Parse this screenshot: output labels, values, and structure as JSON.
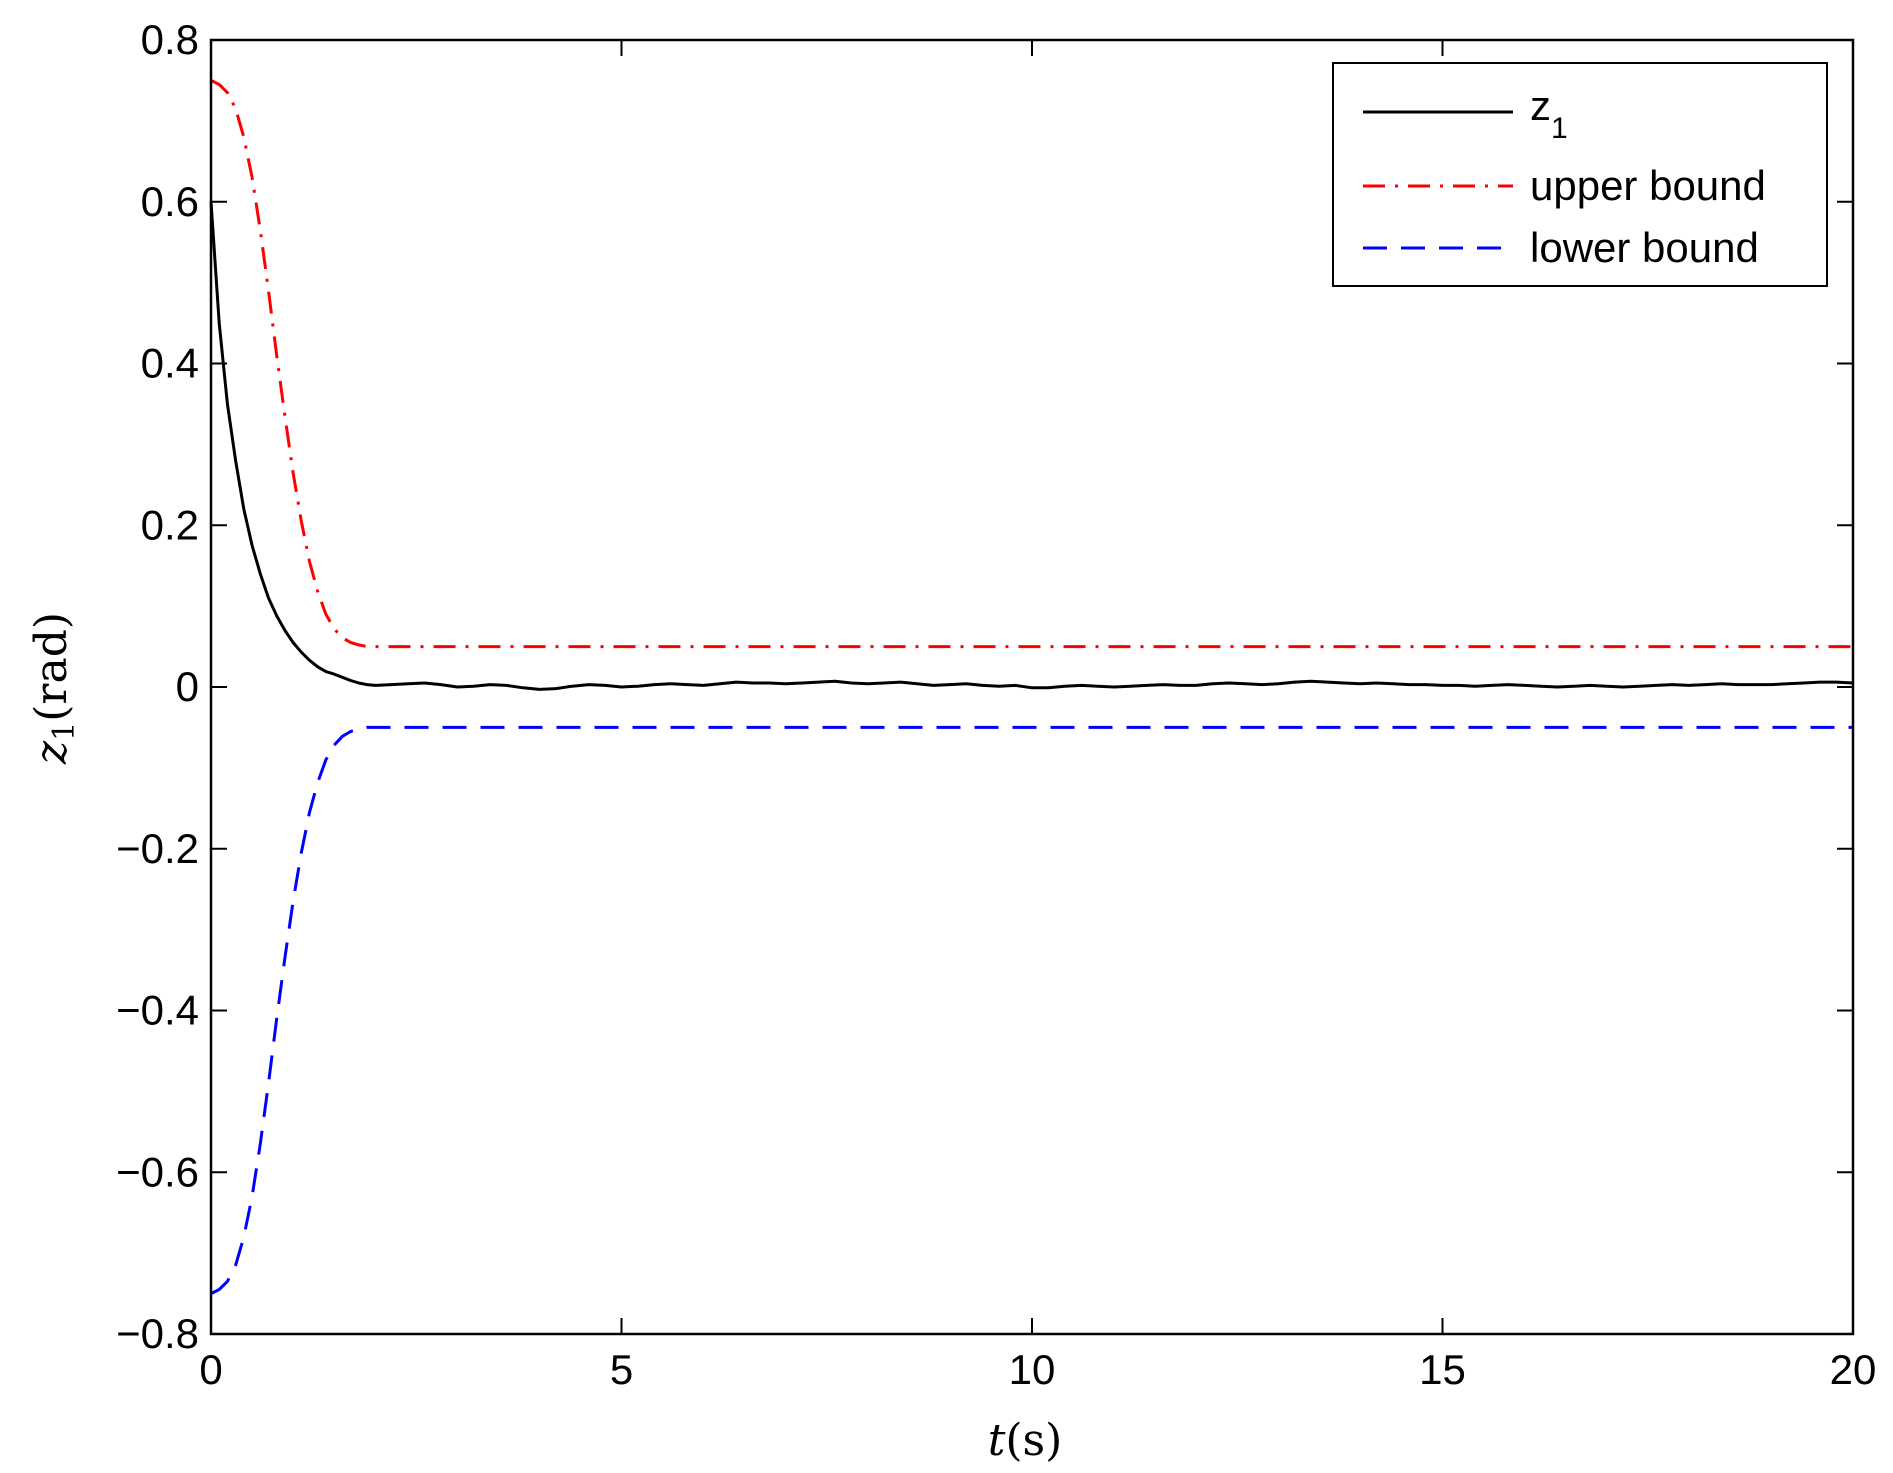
{
  "chart_data": {
    "type": "line",
    "xlabel": {
      "italic": "t",
      "unit": "(s)"
    },
    "ylabel": {
      "italic": "z",
      "sub": "1",
      "unit": "(rad)"
    },
    "xlim": [
      0,
      20
    ],
    "ylim": [
      -0.8,
      0.8
    ],
    "xticks": [
      0,
      5,
      10,
      15,
      20
    ],
    "xtick_labels": [
      "0",
      "5",
      "10",
      "15",
      "20"
    ],
    "yticks": [
      0.8,
      0.6,
      0.4,
      0.2,
      0,
      -0.2,
      -0.4,
      -0.6,
      -0.8
    ],
    "ytick_labels": [
      "0.8",
      "0.6",
      "0.4",
      "0.2",
      "0",
      "−0.2",
      "−0.4",
      "−0.6",
      "−0.8"
    ],
    "grid": false,
    "legend_position": "top-right",
    "series": [
      {
        "name": "z",
        "name_sub": "1",
        "color": "#000000",
        "style": "solid",
        "x": [
          0,
          0.1,
          0.2,
          0.3,
          0.4,
          0.5,
          0.6,
          0.7,
          0.8,
          0.9,
          1.0,
          1.1,
          1.2,
          1.3,
          1.4,
          1.5,
          1.6,
          1.7,
          1.8,
          1.9,
          2.0,
          2.2,
          2.4,
          2.6,
          2.8,
          3.0,
          3.2,
          3.4,
          3.6,
          3.8,
          4.0,
          4.2,
          4.4,
          4.6,
          4.8,
          5.0,
          5.2,
          5.4,
          5.6,
          5.8,
          6.0,
          6.2,
          6.4,
          6.6,
          6.8,
          7.0,
          7.2,
          7.4,
          7.6,
          7.8,
          8.0,
          8.2,
          8.4,
          8.6,
          8.8,
          9.0,
          9.2,
          9.4,
          9.6,
          9.8,
          10.0,
          10.2,
          10.4,
          10.6,
          10.8,
          11.0,
          11.2,
          11.4,
          11.6,
          11.8,
          12.0,
          12.2,
          12.4,
          12.6,
          12.8,
          13.0,
          13.2,
          13.4,
          13.6,
          13.8,
          14.0,
          14.2,
          14.4,
          14.6,
          14.8,
          15.0,
          15.2,
          15.4,
          15.6,
          15.8,
          16.0,
          16.2,
          16.4,
          16.6,
          16.8,
          17.0,
          17.2,
          17.4,
          17.6,
          17.8,
          18.0,
          18.2,
          18.4,
          18.6,
          18.8,
          19.0,
          19.2,
          19.4,
          19.6,
          19.8,
          20.0
        ],
        "values": [
          0.6,
          0.45,
          0.35,
          0.28,
          0.22,
          0.175,
          0.14,
          0.11,
          0.088,
          0.07,
          0.055,
          0.043,
          0.033,
          0.025,
          0.019,
          0.016,
          0.012,
          0.008,
          0.005,
          0.003,
          0.002,
          0.003,
          0.004,
          0.005,
          0.003,
          0.0,
          0.001,
          0.003,
          0.002,
          -0.001,
          -0.003,
          -0.002,
          0.001,
          0.003,
          0.002,
          0.0,
          0.001,
          0.003,
          0.004,
          0.003,
          0.002,
          0.004,
          0.006,
          0.005,
          0.005,
          0.004,
          0.005,
          0.006,
          0.007,
          0.005,
          0.004,
          0.005,
          0.006,
          0.004,
          0.002,
          0.003,
          0.004,
          0.002,
          0.001,
          0.002,
          -0.001,
          -0.001,
          0.001,
          0.002,
          0.001,
          0.0,
          0.001,
          0.002,
          0.003,
          0.002,
          0.002,
          0.004,
          0.005,
          0.004,
          0.003,
          0.004,
          0.006,
          0.007,
          0.006,
          0.005,
          0.004,
          0.005,
          0.004,
          0.003,
          0.003,
          0.002,
          0.002,
          0.001,
          0.002,
          0.003,
          0.002,
          0.001,
          0.0,
          0.001,
          0.002,
          0.001,
          0.0,
          0.001,
          0.002,
          0.003,
          0.002,
          0.003,
          0.004,
          0.003,
          0.003,
          0.003,
          0.004,
          0.005,
          0.006,
          0.006,
          0.005
        ]
      },
      {
        "name": "upper bound",
        "color": "#ff0000",
        "style": "dashdot",
        "x": [
          0,
          0.1,
          0.2,
          0.3,
          0.4,
          0.5,
          0.6,
          0.7,
          0.8,
          0.9,
          1.0,
          1.1,
          1.2,
          1.3,
          1.4,
          1.5,
          1.6,
          1.7,
          1.8,
          1.9,
          2.0,
          2.2,
          20.0
        ],
        "values": [
          0.75,
          0.745,
          0.735,
          0.715,
          0.68,
          0.63,
          0.565,
          0.49,
          0.41,
          0.335,
          0.265,
          0.205,
          0.155,
          0.118,
          0.09,
          0.072,
          0.061,
          0.055,
          0.052,
          0.05,
          0.05,
          0.05,
          0.05
        ]
      },
      {
        "name": "lower bound",
        "color": "#0000ff",
        "style": "dashed",
        "x": [
          0,
          0.1,
          0.2,
          0.3,
          0.4,
          0.5,
          0.6,
          0.7,
          0.8,
          0.9,
          1.0,
          1.1,
          1.2,
          1.3,
          1.4,
          1.5,
          1.6,
          1.7,
          1.8,
          1.9,
          2.0,
          2.2,
          20.0
        ],
        "values": [
          -0.75,
          -0.745,
          -0.735,
          -0.715,
          -0.68,
          -0.63,
          -0.565,
          -0.49,
          -0.41,
          -0.335,
          -0.265,
          -0.205,
          -0.155,
          -0.118,
          -0.09,
          -0.072,
          -0.061,
          -0.055,
          -0.052,
          -0.05,
          -0.05,
          -0.05,
          -0.05
        ]
      }
    ]
  }
}
